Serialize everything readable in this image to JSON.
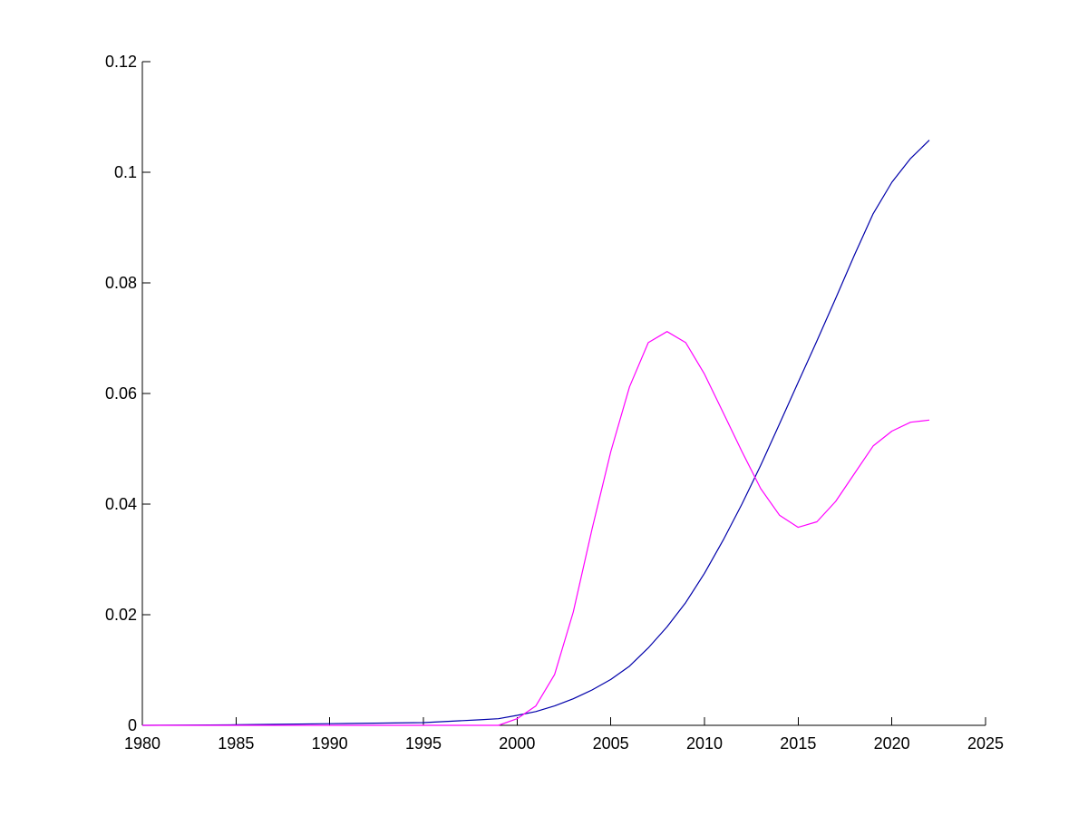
{
  "chart_data": {
    "type": "line",
    "title": "",
    "xlabel": "",
    "ylabel": "",
    "xlim": [
      1980,
      2025
    ],
    "ylim": [
      0,
      0.12
    ],
    "x_ticks": [
      1980,
      1985,
      1990,
      1995,
      2000,
      2005,
      2010,
      2015,
      2020,
      2025
    ],
    "x_tick_labels": [
      "1980",
      "1985",
      "1990",
      "1995",
      "2000",
      "2005",
      "2010",
      "2015",
      "2020",
      "2025"
    ],
    "y_ticks": [
      0,
      0.02,
      0.04,
      0.06,
      0.08,
      0.1,
      0.12
    ],
    "y_tick_labels": [
      "0",
      "0.02",
      "0.04",
      "0.06",
      "0.08",
      "0.1",
      "0.12"
    ],
    "grid": false,
    "legend": "none",
    "series": [
      {
        "color": "#0000aa",
        "x": [
          1980,
          1985,
          1990,
          1995,
          1998,
          1999,
          2000,
          2001,
          2002,
          2003,
          2004,
          2005,
          2006,
          2007,
          2008,
          2009,
          2010,
          2011,
          2012,
          2013,
          2014,
          2015,
          2016,
          2017,
          2018,
          2019,
          2020,
          2021,
          2022
        ],
        "y": [
          0.0,
          0.0001,
          0.0003,
          0.0005,
          0.001,
          0.0012,
          0.0018,
          0.0025,
          0.0035,
          0.0048,
          0.0064,
          0.0083,
          0.0107,
          0.014,
          0.0178,
          0.0222,
          0.0275,
          0.0335,
          0.04,
          0.047,
          0.0545,
          0.062,
          0.0695,
          0.0772,
          0.085,
          0.0925,
          0.0982,
          0.1025,
          0.1058
        ]
      },
      {
        "color": "#ff00ff",
        "x": [
          1980,
          1985,
          1990,
          1995,
          1999,
          2000,
          2001,
          2002,
          2003,
          2004,
          2005,
          2006,
          2007,
          2008,
          2009,
          2010,
          2011,
          2012,
          2013,
          2014,
          2015,
          2016,
          2017,
          2018,
          2019,
          2020,
          2021,
          2022
        ],
        "y": [
          0.0,
          0.0,
          0.0,
          0.0,
          0.0,
          0.0012,
          0.0035,
          0.0092,
          0.0205,
          0.0355,
          0.0495,
          0.0612,
          0.0692,
          0.0712,
          0.0692,
          0.0635,
          0.0565,
          0.0495,
          0.0428,
          0.038,
          0.0358,
          0.0368,
          0.0405,
          0.0455,
          0.0505,
          0.0532,
          0.0548,
          0.0552
        ]
      }
    ]
  }
}
